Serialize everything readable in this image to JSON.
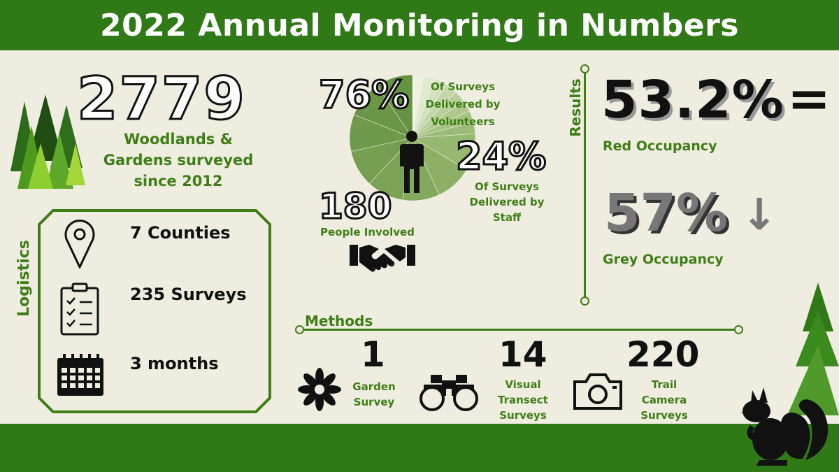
{
  "title": "2022 Annual Monitoring in Numbers",
  "surveyed": {
    "number": "2779",
    "label_line1": "Woodlands &",
    "label_line2": "Gardens surveyed",
    "label_line3": "since 2012"
  },
  "logistics": {
    "heading": "Logistics",
    "items": [
      {
        "label": "7 Counties",
        "icon": "map-pin-icon"
      },
      {
        "label": "235 Surveys",
        "icon": "clipboard-checklist-icon"
      },
      {
        "label": "3 months",
        "icon": "calendar-icon"
      }
    ]
  },
  "delivery": {
    "volunteers_pct": "76%",
    "volunteers_l1": "Of Surveys",
    "volunteers_l2": "Delivered by",
    "volunteers_l3": "Volunteers",
    "staff_pct": "24%",
    "staff_l1": "Of Surveys",
    "staff_l2": "Delivered by",
    "staff_l3": "Staff",
    "people_number": "180",
    "people_label": "People Involved",
    "volunteer_fraction": 0.76,
    "staff_fraction": 0.24
  },
  "results": {
    "heading": "Results",
    "red_pct": "53.2%",
    "red_symbol": "=",
    "red_label": "Red Occupancy",
    "grey_pct": "57%",
    "grey_symbol": "↓",
    "grey_label": "Grey Occupancy"
  },
  "methods": {
    "heading": "Methods",
    "items": [
      {
        "number": "1",
        "l1": "Garden",
        "l2": "Survey",
        "l3": "",
        "icon": "flower-icon"
      },
      {
        "number": "14",
        "l1": "Visual",
        "l2": "Transect",
        "l3": "Surveys",
        "icon": "binoculars-icon"
      },
      {
        "number": "220",
        "l1": "Trail",
        "l2": "Camera",
        "l3": "Surveys",
        "icon": "camera-icon"
      }
    ]
  },
  "colors": {
    "green": "#2f7a16",
    "text_green": "#3f7e17",
    "background": "#efede0",
    "grey_number": "#777777"
  }
}
